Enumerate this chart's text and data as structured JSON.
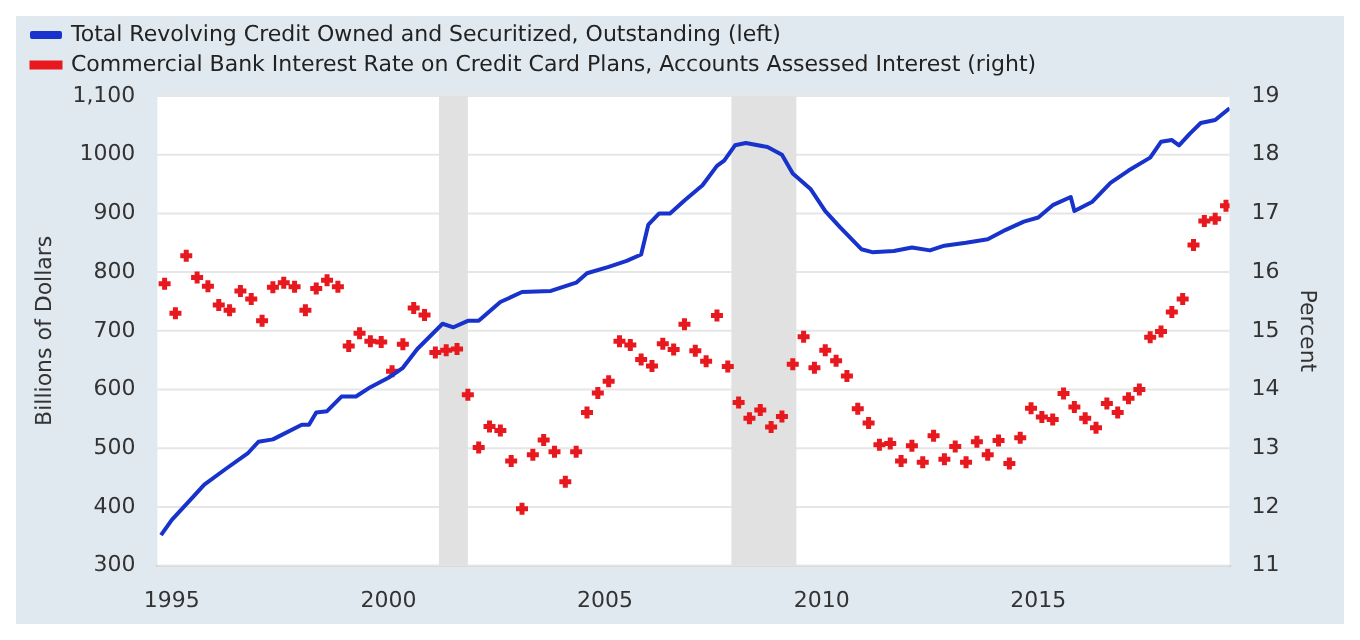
{
  "chart_data": {
    "type": "line",
    "ylabel": "Billions of Dollars",
    "y2label": "Percent",
    "legend": "top left",
    "grid": "y",
    "xlim": [
      "1994-09",
      "2019-06"
    ],
    "xticks": [
      "1995",
      "2000",
      "2005",
      "2010",
      "2015"
    ],
    "ylim": [
      300,
      1100
    ],
    "yticks": [
      300,
      400,
      500,
      600,
      700,
      800,
      900,
      1000,
      {
        "value": 1100,
        "label": "1,100"
      }
    ],
    "y2lim": [
      11,
      19
    ],
    "y2ticks": [
      11,
      12,
      13,
      14,
      15,
      16,
      17,
      18,
      19
    ],
    "bands": [
      {
        "axis": "x",
        "from": "2001-03",
        "to": "2001-11",
        "color": "#e1e1e1"
      },
      {
        "axis": "x",
        "from": "2007-12",
        "to": "2009-06",
        "color": "#e1e1e1"
      }
    ],
    "series": [
      {
        "name": "Total Revolving Credit Owned and Securitized, Outstanding (left)",
        "color": "#1733cc",
        "marker": "none",
        "x": [
          "1994-10",
          "1995-01",
          "1995-06",
          "1995-10",
          "1996-04",
          "1996-10",
          "1997-01",
          "1997-05",
          "1998-01",
          "1998-03",
          "1998-05",
          "1998-08",
          "1998-12",
          "1999-04",
          "1999-08",
          "2000-01",
          "2000-05",
          "2000-09",
          "2001-04",
          "2001-07",
          "2001-11",
          "2002-02",
          "2002-08",
          "2003-02",
          "2003-10",
          "2004-05",
          "2004-08",
          "2005-02",
          "2005-07",
          "2005-11",
          "2006-01",
          "2006-04",
          "2006-07",
          "2006-11",
          "2007-04",
          "2007-08",
          "2007-10",
          "2008-01",
          "2008-04",
          "2008-10",
          "2009-02",
          "2009-05",
          "2009-10",
          "2010-02",
          "2010-06",
          "2010-12",
          "2011-03",
          "2011-09",
          "2012-02",
          "2012-07",
          "2012-11",
          "2013-05",
          "2013-11",
          "2014-04",
          "2014-09",
          "2015-01",
          "2015-05",
          "2015-10",
          "2015-11",
          "2016-04",
          "2016-09",
          "2017-02",
          "2017-08",
          "2017-11",
          "2018-02",
          "2018-04",
          "2018-07",
          "2018-10",
          "2019-02",
          "2019-06"
        ],
        "values": [
          352,
          378,
          411,
          438,
          465,
          491,
          511,
          515,
          540,
          540,
          561,
          563,
          588,
          588,
          604,
          620,
          637,
          669,
          712,
          706,
          717,
          717,
          749,
          766,
          768,
          782,
          798,
          809,
          819,
          830,
          881,
          900,
          900,
          922,
          948,
          981,
          990,
          1016,
          1020,
          1013,
          1000,
          968,
          941,
          904,
          877,
          839,
          834,
          836,
          842,
          837,
          845,
          850,
          856,
          872,
          886,
          893,
          914,
          928,
          904,
          920,
          952,
          973,
          995,
          1022,
          1025,
          1016,
          1036,
          1054,
          1059,
          1079
        ]
      },
      {
        "name": "Commercial Bank Interest Rate on Credit Card Plans, Accounts Assessed Interest (right)",
        "type": "scatter",
        "axis": "y2",
        "color": "#e8191e",
        "marker": "cross",
        "x": [
          "1994-11",
          "1995-02",
          "1995-05",
          "1995-08",
          "1995-11",
          "1996-02",
          "1996-05",
          "1996-08",
          "1996-11",
          "1997-02",
          "1997-05",
          "1997-08",
          "1997-11",
          "1998-02",
          "1998-05",
          "1998-08",
          "1998-11",
          "1999-02",
          "1999-05",
          "1999-08",
          "1999-11",
          "2000-02",
          "2000-05",
          "2000-08",
          "2000-11",
          "2001-02",
          "2001-05",
          "2001-08",
          "2001-11",
          "2002-02",
          "2002-05",
          "2002-08",
          "2002-11",
          "2003-02",
          "2003-05",
          "2003-08",
          "2003-11",
          "2004-02",
          "2004-05",
          "2004-08",
          "2004-11",
          "2005-02",
          "2005-05",
          "2005-08",
          "2005-11",
          "2006-02",
          "2006-05",
          "2006-08",
          "2006-11",
          "2007-02",
          "2007-05",
          "2007-08",
          "2007-11",
          "2008-02",
          "2008-05",
          "2008-08",
          "2008-11",
          "2009-02",
          "2009-05",
          "2009-08",
          "2009-11",
          "2010-02",
          "2010-05",
          "2010-08",
          "2010-11",
          "2011-02",
          "2011-05",
          "2011-08",
          "2011-11",
          "2012-02",
          "2012-05",
          "2012-08",
          "2012-11",
          "2013-02",
          "2013-05",
          "2013-08",
          "2013-11",
          "2014-02",
          "2014-05",
          "2014-08",
          "2014-11",
          "2015-02",
          "2015-05",
          "2015-08",
          "2015-11",
          "2016-02",
          "2016-05",
          "2016-08",
          "2016-11",
          "2017-02",
          "2017-05",
          "2017-08",
          "2017-11",
          "2018-02",
          "2018-05",
          "2018-08",
          "2018-11",
          "2019-02",
          "2019-05"
        ],
        "values": [
          15.8,
          15.3,
          16.28,
          15.91,
          15.76,
          15.44,
          15.35,
          15.68,
          15.54,
          15.17,
          15.74,
          15.82,
          15.75,
          15.35,
          15.72,
          15.86,
          15.75,
          14.74,
          14.96,
          14.82,
          14.81,
          14.31,
          14.77,
          15.39,
          15.27,
          14.63,
          14.67,
          14.69,
          13.91,
          13.01,
          13.37,
          13.3,
          12.78,
          11.97,
          12.89,
          13.14,
          12.94,
          12.43,
          12.94,
          13.61,
          13.94,
          14.14,
          14.82,
          14.76,
          14.51,
          14.4,
          14.78,
          14.68,
          15.11,
          14.66,
          14.48,
          15.26,
          14.39,
          13.78,
          13.51,
          13.65,
          13.36,
          13.54,
          14.43,
          14.9,
          14.37,
          14.67,
          14.49,
          14.23,
          13.67,
          13.43,
          13.06,
          13.08,
          12.78,
          13.04,
          12.76,
          13.21,
          12.81,
          13.03,
          12.76,
          13.11,
          12.89,
          13.13,
          12.74,
          13.18,
          13.68,
          13.53,
          13.49,
          13.93,
          13.7,
          13.51,
          13.35,
          13.76,
          13.61,
          13.85,
          14.0,
          14.89,
          14.99,
          15.32,
          15.54,
          16.46,
          16.87,
          16.91,
          17.13
        ]
      }
    ]
  }
}
